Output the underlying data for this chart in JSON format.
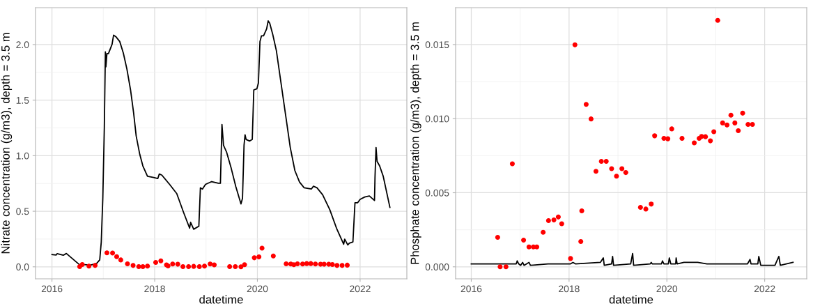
{
  "chart_data": [
    {
      "type": "line",
      "xlabel": "datetime",
      "ylabel": "Nitrate concentration (g/m3), depth = 3.5 m",
      "grid": true,
      "xlim": [
        2015.68,
        2022.91
      ],
      "xticks": [
        2016,
        2018,
        2020,
        2022
      ],
      "ylim": [
        -0.108,
        2.332
      ],
      "yticks": [
        {
          "value": 0,
          "label": "0.0"
        },
        {
          "value": 0.5,
          "label": "0.5"
        },
        {
          "value": 1,
          "label": "1.0"
        },
        {
          "value": 1.5,
          "label": "1.5"
        },
        {
          "value": 2,
          "label": "2.0"
        }
      ],
      "series": [
        {
          "color": "#000000",
          "marker": "none",
          "x": [
            2016.0,
            2016.08,
            2016.1,
            2016.22,
            2016.28,
            2016.53,
            2016.76,
            2016.87,
            2016.93,
            2016.96,
            2016.99,
            2017.02,
            2017.04,
            2017.05,
            2017.07,
            2017.1,
            2017.17,
            2017.2,
            2017.25,
            2017.32,
            2017.39,
            2017.46,
            2017.53,
            2017.59,
            2017.64,
            2017.71,
            2017.77,
            2017.86,
            2017.98,
            2018.06,
            2018.09,
            2018.14,
            2018.29,
            2018.43,
            2018.56,
            2018.68,
            2018.7,
            2018.76,
            2018.86,
            2018.89,
            2018.93,
            2018.99,
            2019.11,
            2019.24,
            2019.28,
            2019.31,
            2019.34,
            2019.4,
            2019.49,
            2019.58,
            2019.68,
            2019.71,
            2019.74,
            2019.76,
            2019.78,
            2019.85,
            2019.9,
            2019.93,
            2019.99,
            2020.02,
            2020.05,
            2020.08,
            2020.12,
            2020.18,
            2020.21,
            2020.24,
            2020.3,
            2020.37,
            2020.46,
            2020.55,
            2020.64,
            2020.73,
            2020.82,
            2020.91,
            2021.05,
            2021.09,
            2021.16,
            2021.27,
            2021.41,
            2021.54,
            2021.68,
            2021.7,
            2021.76,
            2021.79,
            2021.86,
            2021.9,
            2021.95,
            2022.0,
            2022.09,
            2022.18,
            2022.28,
            2022.29,
            2022.31,
            2022.33,
            2022.38,
            2022.45,
            2022.58
          ],
          "values": [
            0.11,
            0.106,
            0.118,
            0.104,
            0.12,
            0.021,
            0.017,
            0.031,
            0.062,
            0.224,
            0.618,
            1.26,
            1.934,
            1.8,
            1.919,
            1.919,
            2.002,
            2.085,
            2.068,
            2.027,
            1.923,
            1.778,
            1.592,
            1.384,
            1.177,
            1.011,
            0.908,
            0.815,
            0.804,
            0.794,
            0.835,
            0.825,
            0.742,
            0.659,
            0.493,
            0.348,
            0.4,
            0.338,
            0.365,
            0.711,
            0.7,
            0.742,
            0.767,
            0.752,
            0.752,
            1.281,
            1.094,
            1.032,
            0.887,
            0.721,
            0.566,
            0.617,
            1.094,
            1.188,
            1.146,
            1.132,
            1.146,
            1.592,
            1.602,
            1.654,
            2.027,
            2.079,
            2.079,
            2.141,
            2.213,
            2.193,
            2.089,
            1.944,
            1.654,
            1.364,
            1.074,
            0.866,
            0.763,
            0.711,
            0.7,
            0.725,
            0.711,
            0.649,
            0.514,
            0.348,
            0.203,
            0.249,
            0.197,
            0.213,
            0.224,
            0.576,
            0.576,
            0.607,
            0.628,
            0.638,
            0.597,
            0.804,
            1.074,
            0.949,
            0.908,
            0.815,
            0.535
          ]
        },
        {
          "type": "scatter",
          "color": "#ff0000",
          "marker": "circle",
          "x": [
            2016.54,
            2016.59,
            2016.72,
            2016.84,
            2017.07,
            2017.18,
            2017.26,
            2017.34,
            2017.47,
            2017.58,
            2017.69,
            2017.77,
            2017.86,
            2018.02,
            2018.12,
            2018.23,
            2018.26,
            2018.35,
            2018.45,
            2018.55,
            2018.66,
            2018.76,
            2018.87,
            2018.97,
            2019.08,
            2019.16,
            2019.46,
            2019.57,
            2019.68,
            2019.75,
            2019.94,
            2020.03,
            2020.09,
            2020.31,
            2020.56,
            2020.65,
            2020.71,
            2020.78,
            2020.88,
            2020.96,
            2021.04,
            2021.13,
            2021.23,
            2021.3,
            2021.39,
            2021.46,
            2021.55,
            2021.65,
            2021.75
          ],
          "values": [
            0.002,
            0.021,
            0.006,
            0.012,
            0.126,
            0.124,
            0.091,
            0.062,
            0.027,
            0.012,
            0.002,
            0.002,
            0.006,
            0.039,
            0.054,
            0.017,
            0.008,
            0.025,
            0.023,
            0.002,
            0.002,
            0.004,
            0.002,
            0.006,
            0.025,
            0.017,
            0.002,
            0.002,
            0.0,
            0.019,
            0.081,
            0.089,
            0.168,
            0.097,
            0.027,
            0.025,
            0.019,
            0.027,
            0.025,
            0.029,
            0.029,
            0.025,
            0.023,
            0.023,
            0.023,
            0.021,
            0.012,
            0.012,
            0.015
          ]
        }
      ]
    },
    {
      "type": "line",
      "xlabel": "datetime",
      "ylabel": "Phosphate concentration (g/m3), depth = 3.5 m",
      "grid": true,
      "xlim": [
        2015.68,
        2022.86
      ],
      "xticks": [
        2016,
        2018,
        2020,
        2022
      ],
      "ylim": [
        -0.00081,
        0.01749
      ],
      "yticks": [
        {
          "value": 0,
          "label": "0.000"
        },
        {
          "value": 0.005,
          "label": "0.005"
        },
        {
          "value": 0.01,
          "label": "0.010"
        },
        {
          "value": 0.015,
          "label": "0.015"
        }
      ],
      "series": [
        {
          "color": "#000000",
          "marker": "none",
          "x": [
            2016.0,
            2016.41,
            2016.83,
            2016.92,
            2016.94,
            2016.97,
            2017.01,
            2017.05,
            2017.08,
            2017.18,
            2017.21,
            2017.57,
            2018.03,
            2018.08,
            2018.13,
            2018.64,
            2018.7,
            2018.72,
            2018.87,
            2018.89,
            2018.91,
            2019.26,
            2019.3,
            2019.32,
            2019.66,
            2019.68,
            2019.7,
            2019.89,
            2019.91,
            2019.94,
            2020.03,
            2020.05,
            2020.08,
            2020.18,
            2020.19,
            2020.21,
            2020.35,
            2020.63,
            2020.82,
            2021.65,
            2021.7,
            2021.72,
            2021.86,
            2021.88,
            2021.92,
            2022.21,
            2022.29,
            2022.32,
            2022.58
          ],
          "values": [
            0.0002,
            0.0002,
            0.0002,
            0.0002,
            0.0004,
            0.0002,
            0.0001,
            0.0003,
            0.0001,
            0.0003,
            0.0001,
            0.0002,
            0.0002,
            0.0003,
            0.0002,
            0.0003,
            0.0006,
            0.0001,
            0.0002,
            0.0007,
            0.0001,
            0.0002,
            0.0009,
            0.0001,
            0.0002,
            0.0003,
            0.0002,
            0.0002,
            0.0004,
            0.0002,
            0.0002,
            0.0006,
            0.0002,
            0.0002,
            0.0006,
            0.0002,
            0.0003,
            0.0003,
            0.0002,
            0.0002,
            0.0005,
            0.0002,
            0.0002,
            0.0007,
            0.0001,
            0.0001,
            0.0007,
            0.0001,
            0.0003
          ]
        },
        {
          "type": "scatter",
          "color": "#ff0000",
          "marker": "circle",
          "x": [
            2016.54,
            2016.59,
            2016.71,
            2016.84,
            2017.07,
            2017.18,
            2017.27,
            2017.34,
            2017.47,
            2017.58,
            2017.69,
            2017.78,
            2017.85,
            2018.03,
            2018.12,
            2018.24,
            2018.26,
            2018.35,
            2018.45,
            2018.55,
            2018.66,
            2018.76,
            2018.87,
            2018.97,
            2019.08,
            2019.16,
            2019.46,
            2019.57,
            2019.68,
            2019.75,
            2019.94,
            2020.02,
            2020.1,
            2020.31,
            2020.56,
            2020.66,
            2020.71,
            2020.79,
            2020.89,
            2020.96,
            2021.04,
            2021.14,
            2021.23,
            2021.31,
            2021.39,
            2021.46,
            2021.55,
            2021.66,
            2021.75
          ],
          "values": [
            0.00199,
            0.0,
            0.0,
            0.00695,
            0.0018,
            0.00134,
            0.00134,
            0.00134,
            0.00233,
            0.00312,
            0.00316,
            0.00336,
            0.00291,
            0.00056,
            0.01498,
            0.00171,
            0.00378,
            0.01096,
            0.00998,
            0.00645,
            0.00712,
            0.00712,
            0.00662,
            0.00612,
            0.00662,
            0.00636,
            0.00401,
            0.0039,
            0.00423,
            0.00884,
            0.00867,
            0.00864,
            0.00931,
            0.00867,
            0.00836,
            0.00867,
            0.0088,
            0.00878,
            0.0085,
            0.00912,
            0.01663,
            0.00971,
            0.00957,
            0.01023,
            0.00971,
            0.00919,
            0.01037,
            0.00961,
            0.00961
          ]
        }
      ]
    }
  ]
}
